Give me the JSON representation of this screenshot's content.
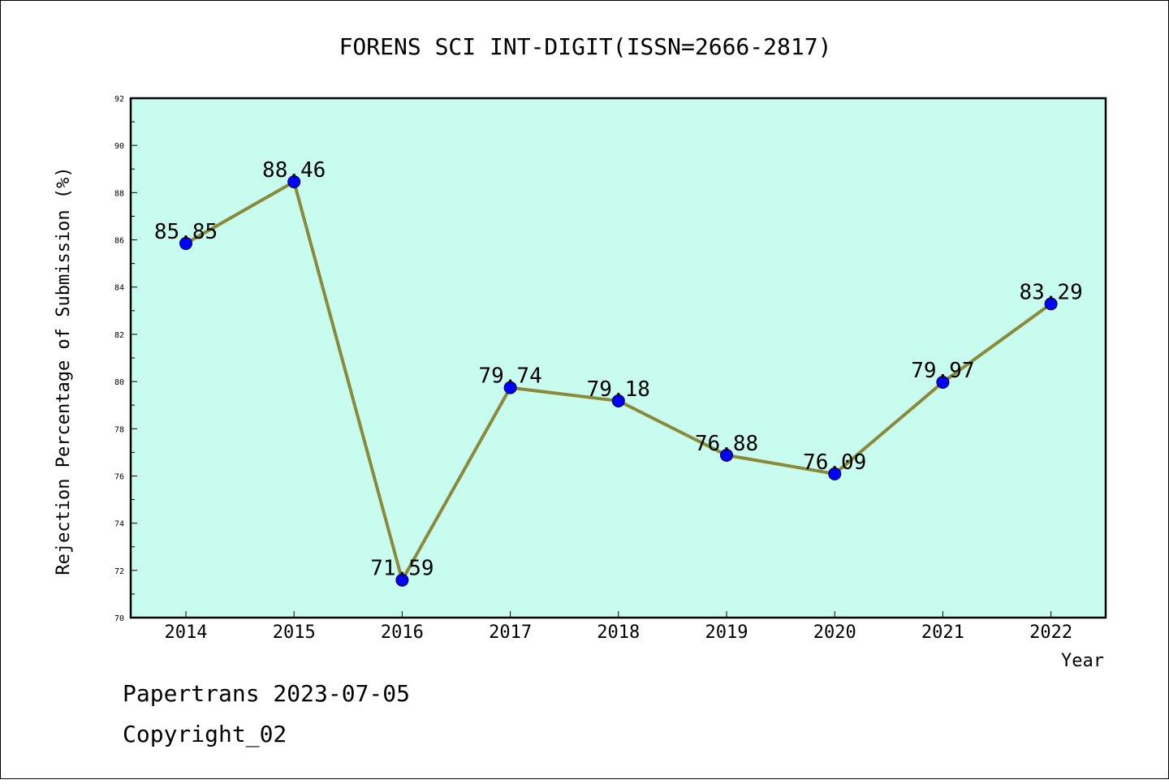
{
  "chart_data": {
    "type": "line",
    "title": "FORENS SCI INT-DIGIT(ISSN=2666-2817)",
    "xlabel": "Year",
    "ylabel": "Rejection Percentage of Submission (%)",
    "categories": [
      "2014",
      "2015",
      "2016",
      "2017",
      "2018",
      "2019",
      "2020",
      "2021",
      "2022"
    ],
    "values": [
      85.85,
      88.46,
      71.59,
      79.74,
      79.18,
      76.88,
      76.09,
      79.97,
      83.29
    ],
    "data_labels": [
      "85.85",
      "88.46",
      "71.59",
      "79.74",
      "79.18",
      "76.88",
      "76.09",
      "79.97",
      "83.29"
    ],
    "ylim": [
      70,
      92
    ],
    "yticks": [
      70,
      72,
      74,
      76,
      78,
      80,
      82,
      84,
      86,
      88,
      90,
      92
    ],
    "grid": false,
    "colors": {
      "plot_background": "#c8fcee",
      "line": "#8b8a3a",
      "marker": "#0000ff"
    }
  },
  "footer": {
    "source_line": "Papertrans 2023-07-05",
    "copyright_line": "Copyright_02"
  }
}
